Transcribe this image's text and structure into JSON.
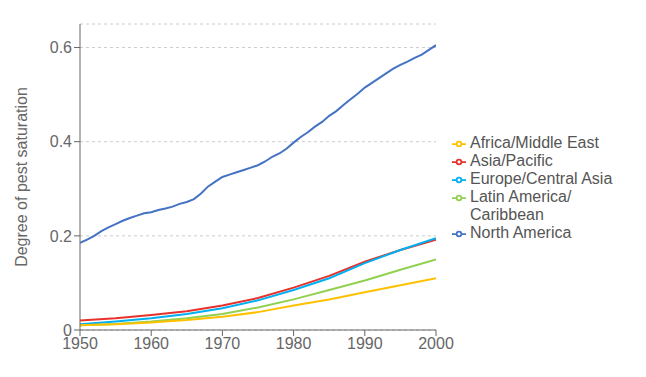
{
  "chart_data": {
    "type": "line",
    "ylabel": "Degree of pest saturation",
    "xlim": [
      1950,
      2000
    ],
    "xticks": [
      1950,
      1960,
      1970,
      1980,
      1990,
      2000
    ],
    "ylim": [
      0,
      0.65
    ],
    "yticks": [
      0,
      0.2,
      0.4,
      0.6
    ],
    "grid": "y",
    "legend": "right",
    "series": [
      {
        "name": "North America",
        "color": "#4472c4",
        "x": [
          1950,
          1951,
          1952,
          1953,
          1954,
          1955,
          1956,
          1957,
          1958,
          1959,
          1960,
          1961,
          1962,
          1963,
          1964,
          1965,
          1966,
          1967,
          1968,
          1969,
          1970,
          1971,
          1972,
          1973,
          1974,
          1975,
          1976,
          1977,
          1978,
          1979,
          1980,
          1981,
          1982,
          1983,
          1984,
          1985,
          1986,
          1987,
          1988,
          1989,
          1990,
          1991,
          1992,
          1993,
          1994,
          1995,
          1996,
          1997,
          1998,
          1999,
          2000
        ],
        "values": [
          0.185,
          0.192,
          0.2,
          0.21,
          0.218,
          0.225,
          0.232,
          0.238,
          0.243,
          0.248,
          0.25,
          0.255,
          0.258,
          0.262,
          0.268,
          0.272,
          0.278,
          0.29,
          0.305,
          0.315,
          0.325,
          0.33,
          0.335,
          0.34,
          0.345,
          0.35,
          0.358,
          0.368,
          0.375,
          0.385,
          0.398,
          0.41,
          0.42,
          0.432,
          0.442,
          0.455,
          0.465,
          0.478,
          0.49,
          0.502,
          0.515,
          0.525,
          0.535,
          0.545,
          0.555,
          0.563,
          0.57,
          0.578,
          0.585,
          0.595,
          0.605
        ]
      },
      {
        "name": "Asia/Pacific",
        "color": "#e8312a",
        "x": [
          1950,
          1955,
          1960,
          1965,
          1970,
          1975,
          1980,
          1985,
          1990,
          1995,
          2000
        ],
        "values": [
          0.02,
          0.025,
          0.032,
          0.04,
          0.052,
          0.068,
          0.09,
          0.115,
          0.145,
          0.17,
          0.192
        ]
      },
      {
        "name": "Europe/Central Asia",
        "color": "#00b0f0",
        "x": [
          1950,
          1955,
          1960,
          1965,
          1970,
          1975,
          1980,
          1985,
          1990,
          1995,
          2000
        ],
        "values": [
          0.012,
          0.018,
          0.025,
          0.034,
          0.046,
          0.063,
          0.085,
          0.11,
          0.142,
          0.17,
          0.195
        ]
      },
      {
        "name": "Latin America/\nCaribbean",
        "color": "#92d050",
        "x": [
          1950,
          1955,
          1960,
          1965,
          1970,
          1975,
          1980,
          1985,
          1990,
          1995,
          2000
        ],
        "values": [
          0.01,
          0.013,
          0.018,
          0.025,
          0.034,
          0.048,
          0.065,
          0.085,
          0.105,
          0.128,
          0.15
        ]
      },
      {
        "name": "Africa/Middle East",
        "color": "#ffc000",
        "x": [
          1950,
          1955,
          1960,
          1965,
          1970,
          1975,
          1980,
          1985,
          1990,
          1995,
          2000
        ],
        "values": [
          0.01,
          0.012,
          0.016,
          0.021,
          0.028,
          0.038,
          0.052,
          0.065,
          0.08,
          0.095,
          0.11
        ]
      }
    ]
  }
}
